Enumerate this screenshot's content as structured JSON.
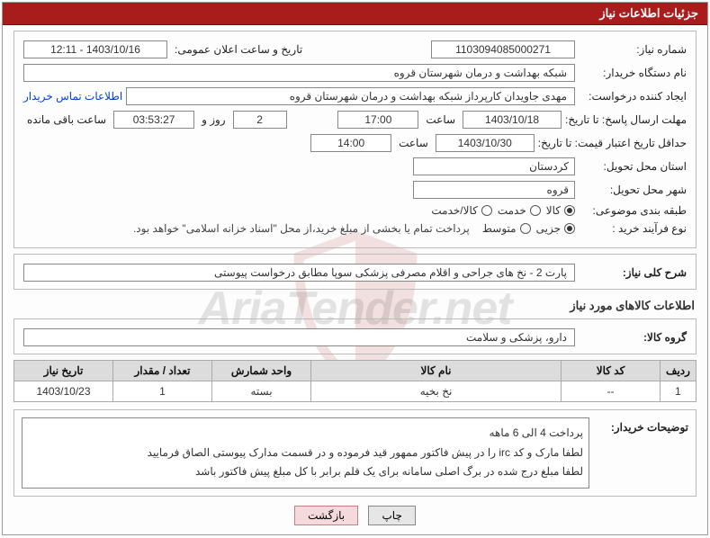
{
  "header": {
    "title": "جزئیات اطلاعات نیاز"
  },
  "section1": {
    "need_no_label": "شماره نیاز:",
    "need_no": "1103094085000271",
    "announce_label": "تاریخ و ساعت اعلان عمومی:",
    "announce_value": "1403/10/16 - 12:11",
    "buyer_label": "نام دستگاه خریدار:",
    "buyer_value": "شبکه بهداشت و درمان شهرستان قروه",
    "requester_label": "ایجاد کننده درخواست:",
    "requester_value": "مهدی جاویدان کارپرداز شبکه بهداشت و درمان شهرستان قروه",
    "contact_link": "اطلاعات تماس خریدار",
    "deadline_label": "مهلت ارسال پاسخ: تا تاریخ:",
    "deadline_date": "1403/10/18",
    "time_label": "ساعت",
    "deadline_time": "17:00",
    "days_remaining": "2",
    "days_and": "روز و",
    "time_remaining": "03:53:27",
    "remaining_label": "ساعت باقی مانده",
    "validity_label": "حداقل تاریخ اعتبار قیمت: تا تاریخ:",
    "validity_date": "1403/10/30",
    "validity_time": "14:00",
    "province_label": "استان محل تحویل:",
    "province_value": "کردستان",
    "city_label": "شهر محل تحویل:",
    "city_value": "قروه",
    "category_label": "طبقه بندی موضوعی:",
    "cat_goods": "کالا",
    "cat_service": "خدمت",
    "cat_both": "کالا/خدمت",
    "process_label": "نوع فرآیند خرید :",
    "proc_partial": "جزیی",
    "proc_medium": "متوسط",
    "process_note": "پرداخت تمام یا بخشی از مبلغ خرید،از محل \"اسناد خزانه اسلامی\" خواهد بود."
  },
  "section2": {
    "title_label": "شرح کلی نیاز:",
    "title_value": "پارت 2 - نخ های جراحی و اقلام مصرفی پزشکی سوپا مطابق درخواست پیوستی"
  },
  "goods_info_title": "اطلاعات کالاهای مورد نیاز",
  "section3": {
    "group_label": "گروه کالا:",
    "group_value": "دارو، پزشکی و سلامت"
  },
  "table": {
    "headers": [
      "ردیف",
      "کد کالا",
      "نام کالا",
      "واحد شمارش",
      "تعداد / مقدار",
      "تاریخ نیاز"
    ],
    "rows": [
      [
        "1",
        "--",
        "نخ بخیه",
        "بسته",
        "1",
        "1403/10/23"
      ]
    ]
  },
  "buyer_notes": {
    "label": "توضیحات خریدار:",
    "lines": [
      "پرداخت 4 الی 6 ماهه",
      "لطفا مارک و کد irc را در پیش فاکتور ممهور قید فرموده و در قسمت مدارک پیوستی الصاق فرمایید",
      "لطفا مبلغ درج شده در برگ اصلی سامانه برای یک قلم برابر با کل مبلغ پیش فاکتور باشد"
    ]
  },
  "buttons": {
    "print": "چاپ",
    "back": "بازگشت"
  },
  "watermark_text": "AriaTender.net",
  "colors": {
    "header_bg": "#a81c1c",
    "link": "#0046c7",
    "th_bg": "#dcdcdc"
  }
}
